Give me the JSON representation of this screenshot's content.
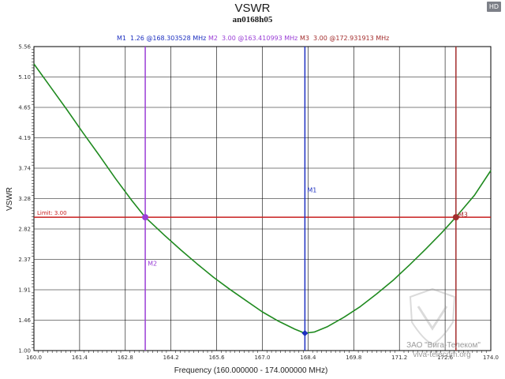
{
  "badge": "HD",
  "chart_data": {
    "type": "line",
    "title": "VSWR",
    "subtitle": "an0168h05",
    "xlabel": "Frequency (160.000000 - 174.000000 MHz)",
    "ylabel": "VSWR",
    "xlim": [
      160.0,
      174.0
    ],
    "ylim": [
      1.0,
      5.56
    ],
    "x_ticks": [
      "160.0",
      "161.4",
      "162.8",
      "164.2",
      "165.6",
      "167.0",
      "168.4",
      "169.8",
      "171.2",
      "172.6",
      "174.0"
    ],
    "y_ticks": [
      "1.00",
      "1.46",
      "1.91",
      "2.37",
      "2.82",
      "3.28",
      "3.74",
      "4.19",
      "4.65",
      "5.10",
      "5.56"
    ],
    "grid": true,
    "series": [
      {
        "color": "#1f8a1f",
        "x": [
          160.0,
          160.5,
          161.0,
          161.5,
          162.0,
          162.5,
          163.0,
          163.41,
          164.0,
          164.5,
          165.0,
          165.5,
          166.0,
          166.5,
          167.0,
          167.5,
          168.0,
          168.3,
          168.6,
          169.0,
          169.5,
          170.0,
          170.5,
          171.0,
          171.5,
          172.0,
          172.5,
          172.93,
          173.5,
          174.0
        ],
        "y": [
          5.3,
          4.96,
          4.62,
          4.27,
          3.93,
          3.58,
          3.25,
          3.0,
          2.73,
          2.51,
          2.3,
          2.1,
          1.92,
          1.75,
          1.58,
          1.44,
          1.32,
          1.26,
          1.28,
          1.36,
          1.5,
          1.66,
          1.85,
          2.05,
          2.28,
          2.52,
          2.77,
          3.0,
          3.33,
          3.7
        ]
      }
    ],
    "limit": {
      "label": "Limit: 3.00",
      "value": 3.0,
      "color": "#c81e1e"
    },
    "markers": [
      {
        "name": "M1",
        "x": 168.303528,
        "y": 1.26,
        "color": "#1c2fc0",
        "legend": "1.26 @168.303528 MHz"
      },
      {
        "name": "M2",
        "x": 163.410993,
        "y": 3.0,
        "color": "#9a3ed6",
        "legend": "3.00 @163.410993 MHz"
      },
      {
        "name": "M3",
        "x": 172.931913,
        "y": 3.0,
        "color": "#a32d2d",
        "legend": "3.00 @172.931913 MHz"
      }
    ]
  },
  "watermark": {
    "line1": "ЗАО \"Вига-Телеком\"",
    "line2": "viva-telecom.org"
  }
}
